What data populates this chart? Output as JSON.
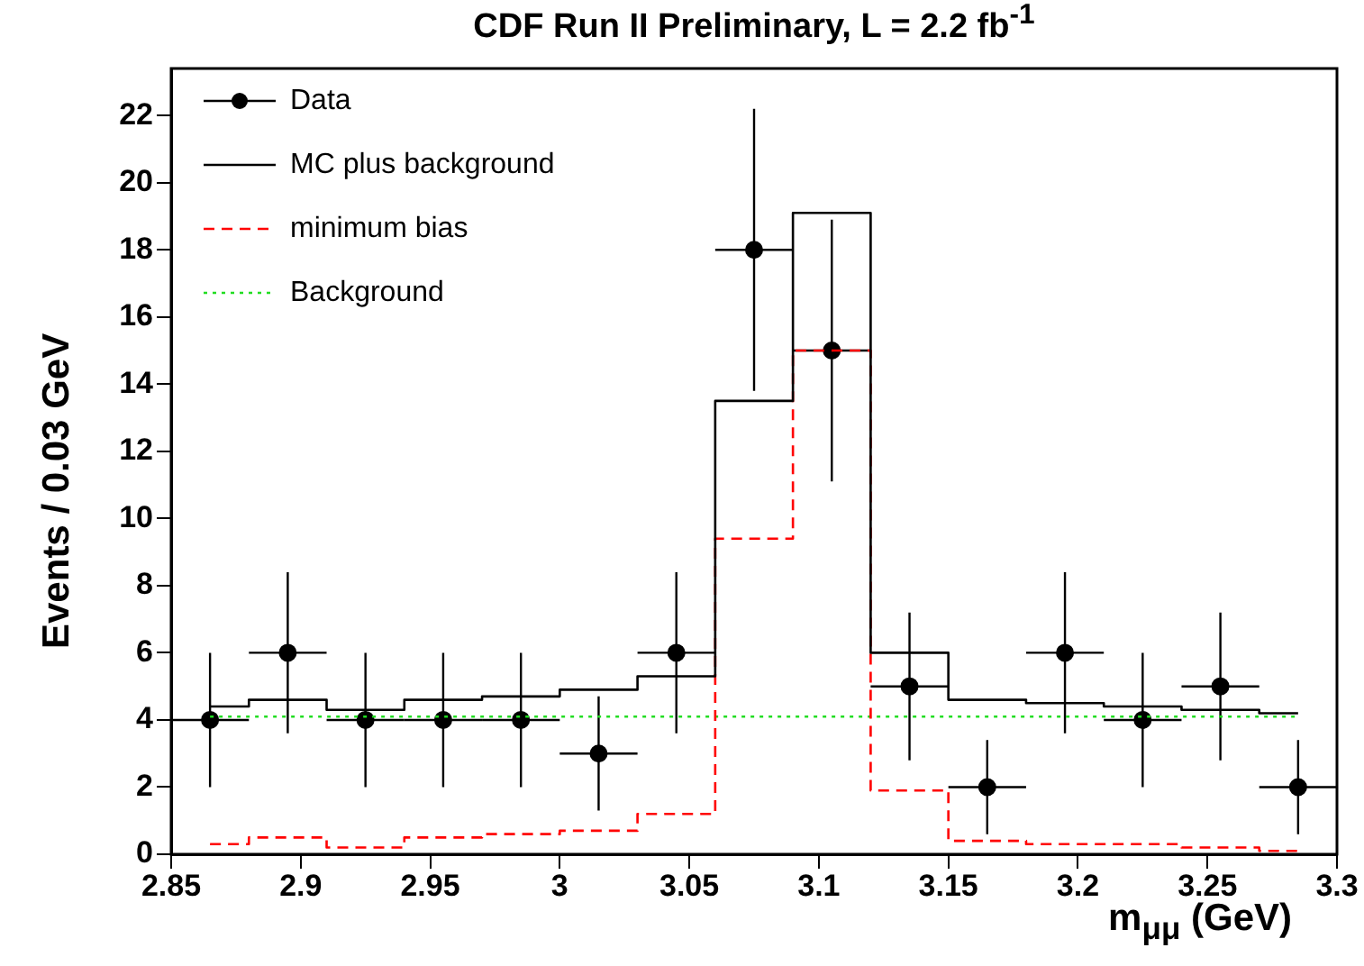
{
  "chart_data": {
    "type": "step",
    "title": "CDF Run II Preliminary, L = 2.2 fb$^{-1}$",
    "xlabel": "m$_{μμ}$ (GeV)",
    "ylabel": "Events / 0.03 GeV",
    "x": [
      2.865,
      2.895,
      2.925,
      2.955,
      2.985,
      3.015,
      3.045,
      3.075,
      3.105,
      3.135,
      3.165,
      3.195,
      3.225,
      3.255,
      3.285
    ],
    "series": [
      {
        "name": "Data",
        "type": "scatter",
        "color": "#000000",
        "marker": "circle",
        "values": [
          4,
          6,
          4,
          4,
          4,
          3,
          6,
          18,
          15,
          5,
          2,
          6,
          4,
          5,
          2
        ],
        "errors": [
          2,
          2.4,
          2,
          2,
          2,
          1.7,
          2.4,
          4.2,
          3.9,
          2.2,
          1.4,
          2.4,
          2,
          2.2,
          1.4
        ],
        "xerrors": [
          0.015,
          0.015,
          0.015,
          0.015,
          0.015,
          0.015,
          0.015,
          0.015,
          0.015,
          0.015,
          0.015,
          0.015,
          0.015,
          0.015,
          0.015
        ]
      },
      {
        "name": "MC plus background",
        "color": "#000000",
        "line_style": "solid",
        "values": [
          4.4,
          4.6,
          4.3,
          4.6,
          4.7,
          4.9,
          5.3,
          13.5,
          19.1,
          6,
          4.6,
          4.5,
          4.4,
          4.3,
          4.2
        ]
      },
      {
        "name": "minimum bias",
        "color": "#ff0000",
        "line_style": "dashed",
        "values": [
          0.3,
          0.5,
          0.2,
          0.5,
          0.6,
          0.7,
          1.2,
          9.4,
          15,
          1.9,
          0.4,
          0.3,
          0.3,
          0.2,
          0.1
        ]
      },
      {
        "name": "Background",
        "color": "#22dd22",
        "line_style": "dotted",
        "values": [
          4.1,
          4.1,
          4.1,
          4.1,
          4.1,
          4.1,
          4.1,
          4.1,
          4.1,
          4.1,
          4.1,
          4.1,
          4.1,
          4.1,
          4.1
        ]
      }
    ],
    "xlim": [
      2.85,
      3.3
    ],
    "xticks": [
      2.85,
      2.9,
      2.95,
      3,
      3.05,
      3.1,
      3.15,
      3.2,
      3.25,
      3.3
    ],
    "ylim": [
      0,
      23.4
    ],
    "yticks": [
      0,
      2,
      4,
      6,
      8,
      10,
      12,
      14,
      16,
      18,
      20,
      22
    ],
    "grid": false,
    "legend": "top left"
  }
}
